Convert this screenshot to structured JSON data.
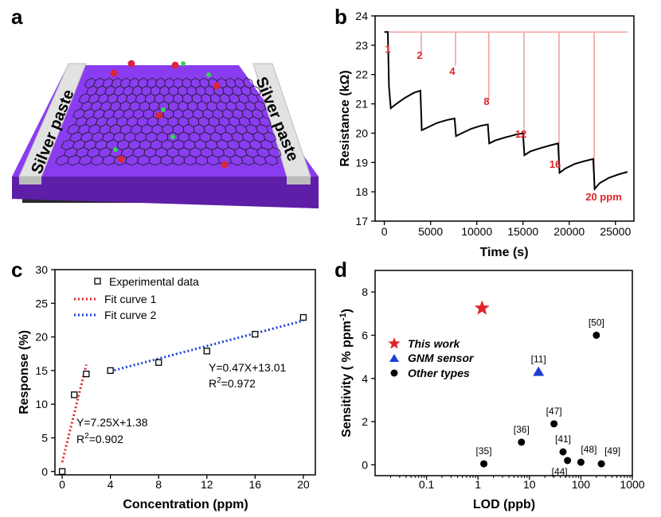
{
  "panel_labels": [
    "a",
    "b",
    "c",
    "d"
  ],
  "panel_a": {
    "electrode_left": "Silver paste",
    "electrode_right": "Silver paste"
  },
  "colors": {
    "purple": "#8a3cf0",
    "red": "#e0242a",
    "blue": "#1d3fd8",
    "pink": "#f2a3a3",
    "black": "#000000"
  },
  "chart_data": [
    {
      "panel": "b",
      "type": "line",
      "xlabel": "Time (s)",
      "ylabel": "Resistance (kΩ)",
      "xlim": [
        -1000,
        27000
      ],
      "ylim": [
        17,
        24
      ],
      "xticks": [
        0,
        5000,
        10000,
        15000,
        20000,
        25000
      ],
      "yticks": [
        17,
        18,
        19,
        20,
        21,
        22,
        23,
        24
      ],
      "xtick_labels": [
        "0",
        "5000",
        "10000",
        "15000",
        "20000",
        "25000"
      ],
      "ytick_labels": [
        "17",
        "18",
        "19",
        "20",
        "21",
        "22",
        "23",
        "24"
      ],
      "baseline_kohm": 23.45,
      "injections": [
        {
          "label": "1",
          "t": 400,
          "r_min": 22.55
        },
        {
          "label": "2",
          "t": 4000,
          "r_min": 22.75
        },
        {
          "label": "4",
          "t": 7700,
          "r_min": 22.3
        },
        {
          "label": "8",
          "t": 11300,
          "r_min": 21.15
        },
        {
          "label": "12",
          "t": 15100,
          "r_min": 19.85
        },
        {
          "label": "16",
          "t": 18900,
          "r_min": 18.8
        },
        {
          "label": "20 ppm",
          "t": 22700,
          "r_min": 18.1
        }
      ],
      "series": [
        {
          "name": "Resistance",
          "points": [
            [
              0,
              23.45
            ],
            [
              200,
              23.45
            ],
            [
              380,
              23.45
            ],
            [
              420,
              22.8
            ],
            [
              500,
              21.6
            ],
            [
              700,
              20.85
            ],
            [
              1300,
              21.0
            ],
            [
              2200,
              21.2
            ],
            [
              3200,
              21.38
            ],
            [
              3900,
              21.45
            ],
            [
              4050,
              20.1
            ],
            [
              4700,
              20.2
            ],
            [
              5700,
              20.35
            ],
            [
              6800,
              20.45
            ],
            [
              7600,
              20.5
            ],
            [
              7750,
              19.9
            ],
            [
              8400,
              20.0
            ],
            [
              9400,
              20.15
            ],
            [
              10400,
              20.25
            ],
            [
              11200,
              20.3
            ],
            [
              11350,
              19.65
            ],
            [
              12000,
              19.75
            ],
            [
              13000,
              19.85
            ],
            [
              14200,
              19.95
            ],
            [
              15000,
              20.0
            ],
            [
              15150,
              19.25
            ],
            [
              15800,
              19.38
            ],
            [
              16800,
              19.48
            ],
            [
              17900,
              19.58
            ],
            [
              18800,
              19.65
            ],
            [
              18950,
              18.65
            ],
            [
              19600,
              18.8
            ],
            [
              20600,
              18.95
            ],
            [
              21700,
              19.05
            ],
            [
              22600,
              19.12
            ],
            [
              22750,
              18.1
            ],
            [
              23300,
              18.3
            ],
            [
              24300,
              18.48
            ],
            [
              25400,
              18.6
            ],
            [
              26300,
              18.68
            ]
          ]
        }
      ]
    },
    {
      "panel": "c",
      "type": "scatter",
      "xlabel": "Concentration (ppm)",
      "ylabel": "Response (%)",
      "xlim": [
        -0.6,
        21
      ],
      "ylim": [
        -0.5,
        30
      ],
      "xticks": [
        0,
        4,
        8,
        12,
        16,
        20
      ],
      "yticks": [
        0,
        5,
        10,
        15,
        20,
        25,
        30
      ],
      "xtick_labels": [
        "0",
        "4",
        "8",
        "12",
        "16",
        "20"
      ],
      "ytick_labels": [
        "0",
        "5",
        "10",
        "15",
        "20",
        "25",
        "30"
      ],
      "legend": [
        "Experimental data",
        "Fit curve 1",
        "Fit curve 2"
      ],
      "series": [
        {
          "name": "Experimental data",
          "x": [
            0,
            1,
            2,
            4,
            8,
            12,
            16,
            20
          ],
          "y": [
            0,
            11.4,
            14.5,
            15.0,
            16.2,
            17.9,
            20.4,
            22.9
          ]
        },
        {
          "name": "Fit curve 1",
          "slope": 7.25,
          "intercept": 1.38,
          "x_range": [
            0,
            2
          ],
          "equation": "Y=7.25X+1.38",
          "r2_prefix": "R",
          "r2_sup": "2",
          "r2_value": "=0.902"
        },
        {
          "name": "Fit curve 2",
          "slope": 0.47,
          "intercept": 13.01,
          "x_range": [
            4,
            20
          ],
          "equation": "Y=0.47X+13.01",
          "r2_prefix": "R",
          "r2_sup": "2",
          "r2_value": "=0.972"
        }
      ]
    },
    {
      "panel": "d",
      "type": "scatter",
      "xlabel": "LOD (ppb)",
      "ylabel_main": "Sensitivity ( % ppm",
      "ylabel_sup": "-1",
      "ylabel_end": ")",
      "xscale": "log",
      "xlim": [
        0.01,
        1000
      ],
      "ylim": [
        -0.5,
        9
      ],
      "xticks": [
        0.1,
        1,
        10,
        100,
        1000
      ],
      "yticks": [
        0,
        2,
        4,
        6,
        8
      ],
      "xtick_labels": [
        "0.1",
        "1",
        "10",
        "100",
        "1000"
      ],
      "ytick_labels": [
        "0",
        "2",
        "4",
        "6",
        "8"
      ],
      "legend": [
        "This work",
        "GNM sensor",
        "Other types"
      ],
      "series": [
        {
          "name": "This work",
          "marker": "star",
          "points": [
            {
              "x": 1.2,
              "y": 7.25
            }
          ]
        },
        {
          "name": "GNM sensor",
          "marker": "triangle",
          "points": [
            {
              "x": 15,
              "y": 4.3,
              "label": "[11]"
            }
          ]
        },
        {
          "name": "Other types",
          "marker": "circle",
          "points": [
            {
              "x": 1.3,
              "y": 0.05,
              "label": "[35]"
            },
            {
              "x": 7,
              "y": 1.05,
              "label": "[36]"
            },
            {
              "x": 30,
              "y": 1.9,
              "label": "[47]"
            },
            {
              "x": 45,
              "y": 0.6,
              "label": "[41]"
            },
            {
              "x": 55,
              "y": 0.2,
              "label": "[44]"
            },
            {
              "x": 100,
              "y": 0.12,
              "label": "[48]"
            },
            {
              "x": 250,
              "y": 0.05,
              "label": "[49]"
            },
            {
              "x": 200,
              "y": 6.0,
              "label": "[50]"
            }
          ]
        }
      ]
    }
  ]
}
